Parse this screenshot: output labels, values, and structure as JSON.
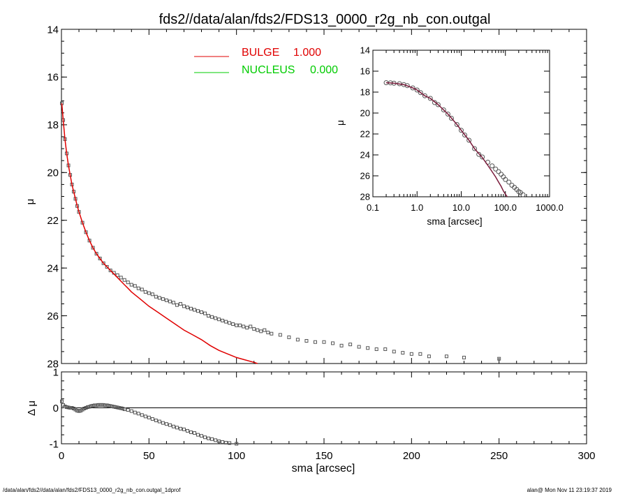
{
  "title": "fds2//data/alan/fds2/FDS13_0000_r2g_nb_con.outgal",
  "footer_left": "/data/alan/fds2//data/alan/fds2/FDS13_0000_r2g_nb_con.outgal_1dprof",
  "footer_right": "alan@  Mon Nov 11 23:19:37 2019",
  "colors": {
    "bulge": "#e00000",
    "nucleus": "#00cc00",
    "data": "#555555",
    "axis": "#000000"
  },
  "chart_data": [
    {
      "type": "scatter",
      "panel": "main",
      "xlabel": "sma [arcsec]",
      "ylabel": "μ",
      "xlim": [
        0,
        300
      ],
      "ylim": [
        28,
        14
      ],
      "x_ticks": [
        0,
        50,
        100,
        150,
        200,
        250,
        300
      ],
      "y_ticks": [
        14,
        16,
        18,
        20,
        22,
        24,
        26,
        28
      ],
      "legend": [
        {
          "name": "BULGE",
          "value": "1.000",
          "color": "#e00000"
        },
        {
          "name": "NUCLEUS",
          "value": "0.000",
          "color": "#00cc00"
        }
      ],
      "legend_position": "top-center",
      "series": [
        {
          "name": "data",
          "style": "open-square",
          "x": [
            0.2,
            1,
            2,
            3,
            4,
            5,
            6,
            7,
            8,
            9,
            10,
            12,
            14,
            16,
            18,
            20,
            22,
            24,
            26,
            28,
            30,
            32,
            34,
            36,
            38,
            40,
            42,
            44,
            46,
            48,
            50,
            52,
            54,
            56,
            58,
            60,
            62,
            64,
            66,
            68,
            70,
            72,
            74,
            76,
            78,
            80,
            82,
            84,
            86,
            88,
            90,
            92,
            94,
            96,
            98,
            100,
            102,
            104,
            106,
            108,
            110,
            112,
            114,
            116,
            118,
            120,
            125,
            130,
            135,
            140,
            145,
            150,
            155,
            160,
            165,
            170,
            175,
            180,
            185,
            190,
            195,
            200,
            205,
            210,
            220,
            230,
            250
          ],
          "y": [
            17.1,
            17.8,
            18.6,
            19.2,
            19.7,
            20.1,
            20.5,
            20.8,
            21.1,
            21.4,
            21.65,
            22.1,
            22.5,
            22.85,
            23.15,
            23.4,
            23.6,
            23.8,
            23.95,
            24.1,
            24.2,
            24.3,
            24.4,
            24.5,
            24.6,
            24.7,
            24.75,
            24.85,
            24.9,
            25.0,
            25.05,
            25.1,
            25.2,
            25.25,
            25.3,
            25.35,
            25.4,
            25.45,
            25.55,
            25.5,
            25.6,
            25.65,
            25.7,
            25.75,
            25.8,
            25.85,
            25.9,
            26.0,
            26.05,
            26.1,
            26.15,
            26.2,
            26.25,
            26.3,
            26.35,
            26.4,
            26.4,
            26.45,
            26.5,
            26.45,
            26.55,
            26.6,
            26.65,
            26.6,
            26.7,
            26.75,
            26.8,
            26.9,
            27.0,
            27.05,
            27.1,
            27.1,
            27.15,
            27.25,
            27.2,
            27.3,
            27.35,
            27.4,
            27.4,
            27.5,
            27.55,
            27.6,
            27.6,
            27.7,
            27.7,
            27.75,
            27.8
          ]
        },
        {
          "name": "BULGE",
          "style": "line",
          "color": "#e00000",
          "x": [
            0.2,
            1,
            2,
            3,
            4,
            5,
            6,
            7,
            8,
            9,
            10,
            12,
            14,
            16,
            18,
            20,
            22,
            24,
            26,
            28,
            30,
            32,
            34,
            36,
            38,
            40,
            45,
            50,
            55,
            60,
            65,
            70,
            75,
            80,
            85,
            90,
            95,
            100,
            105,
            110,
            112
          ],
          "y": [
            17.1,
            17.8,
            18.6,
            19.2,
            19.7,
            20.1,
            20.5,
            20.8,
            21.1,
            21.4,
            21.65,
            22.1,
            22.5,
            22.85,
            23.15,
            23.4,
            23.6,
            23.8,
            23.95,
            24.1,
            24.25,
            24.4,
            24.55,
            24.7,
            24.85,
            25.0,
            25.3,
            25.6,
            25.85,
            26.1,
            26.35,
            26.6,
            26.8,
            27.0,
            27.25,
            27.45,
            27.6,
            27.75,
            27.85,
            27.95,
            28.0
          ]
        }
      ]
    },
    {
      "type": "scatter",
      "panel": "inset",
      "xlabel": "sma [arcsec]",
      "ylabel": "μ",
      "x_scale": "log",
      "xlim": [
        0.1,
        1000.0
      ],
      "ylim": [
        28,
        14
      ],
      "x_ticks": [
        0.1,
        1.0,
        10.0,
        100.0,
        1000.0
      ],
      "x_tick_labels": [
        "0.1",
        "1.0",
        "10.0",
        "100.0",
        "1000.0"
      ],
      "y_ticks": [
        14,
        16,
        18,
        20,
        22,
        24,
        26,
        28
      ],
      "series": [
        {
          "name": "data",
          "style": "open-circle",
          "x": [
            0.2,
            0.25,
            0.3,
            0.4,
            0.5,
            0.6,
            0.8,
            1,
            1.2,
            1.5,
            2,
            2.5,
            3,
            4,
            5,
            6,
            8,
            10,
            12,
            15,
            20,
            25,
            30,
            40,
            50,
            60,
            70,
            80,
            90,
            100,
            120,
            140,
            160,
            180,
            200,
            220,
            250
          ],
          "y": [
            17.1,
            17.12,
            17.15,
            17.2,
            17.28,
            17.38,
            17.6,
            17.8,
            18.05,
            18.35,
            18.6,
            19.0,
            19.2,
            19.7,
            20.1,
            20.5,
            21.1,
            21.65,
            22.1,
            22.6,
            23.4,
            23.95,
            24.2,
            24.7,
            25.05,
            25.35,
            25.6,
            25.85,
            26.1,
            26.35,
            26.6,
            26.9,
            27.1,
            27.3,
            27.5,
            27.6,
            27.8
          ]
        },
        {
          "name": "model",
          "style": "line",
          "color": "#7a1a3a",
          "x": [
            0.2,
            0.3,
            0.5,
            0.8,
            1,
            1.5,
            2,
            3,
            5,
            8,
            10,
            15,
            20,
            30,
            40,
            50,
            60,
            70,
            80,
            90,
            100,
            110
          ],
          "y": [
            17.1,
            17.15,
            17.28,
            17.6,
            17.8,
            18.35,
            18.6,
            19.2,
            20.1,
            21.1,
            21.65,
            22.6,
            23.4,
            24.25,
            25.0,
            25.6,
            26.1,
            26.6,
            27.0,
            27.45,
            27.75,
            28.0
          ]
        }
      ]
    },
    {
      "type": "scatter",
      "panel": "residual",
      "xlabel": "sma [arcsec]",
      "ylabel": "Δ μ",
      "xlim": [
        0,
        300
      ],
      "ylim": [
        -1,
        1
      ],
      "x_ticks": [
        0,
        50,
        100,
        150,
        200,
        250,
        300
      ],
      "y_ticks": [
        -1,
        0,
        1
      ],
      "zero_line": true,
      "series": [
        {
          "name": "residual",
          "style": "open-square",
          "x": [
            0.2,
            1,
            2,
            3,
            4,
            5,
            6,
            7,
            8,
            9,
            10,
            11,
            12,
            13,
            14,
            15,
            16,
            17,
            18,
            19,
            20,
            21,
            22,
            23,
            24,
            25,
            26,
            27,
            28,
            29,
            30,
            31,
            32,
            33,
            34,
            35,
            36,
            38,
            40,
            42,
            44,
            46,
            48,
            50,
            52,
            54,
            56,
            58,
            60,
            62,
            64,
            66,
            68,
            70,
            72,
            74,
            76,
            78,
            80,
            82,
            84,
            86,
            88,
            90,
            92,
            94,
            96,
            100
          ],
          "y": [
            0.18,
            0.08,
            0.04,
            0.02,
            0.01,
            0.0,
            0.0,
            -0.02,
            -0.05,
            -0.08,
            -0.09,
            -0.08,
            -0.05,
            -0.02,
            0.0,
            0.02,
            0.03,
            0.05,
            0.06,
            0.07,
            0.07,
            0.08,
            0.08,
            0.08,
            0.08,
            0.07,
            0.07,
            0.06,
            0.05,
            0.04,
            0.03,
            0.02,
            0.01,
            0.0,
            -0.01,
            -0.02,
            -0.04,
            -0.06,
            -0.09,
            -0.13,
            -0.16,
            -0.2,
            -0.24,
            -0.27,
            -0.31,
            -0.35,
            -0.38,
            -0.42,
            -0.45,
            -0.48,
            -0.52,
            -0.55,
            -0.58,
            -0.6,
            -0.64,
            -0.68,
            -0.7,
            -0.75,
            -0.78,
            -0.82,
            -0.85,
            -0.87,
            -0.9,
            -0.93,
            -0.95,
            -0.97,
            -0.98,
            -1.0
          ]
        }
      ]
    }
  ]
}
